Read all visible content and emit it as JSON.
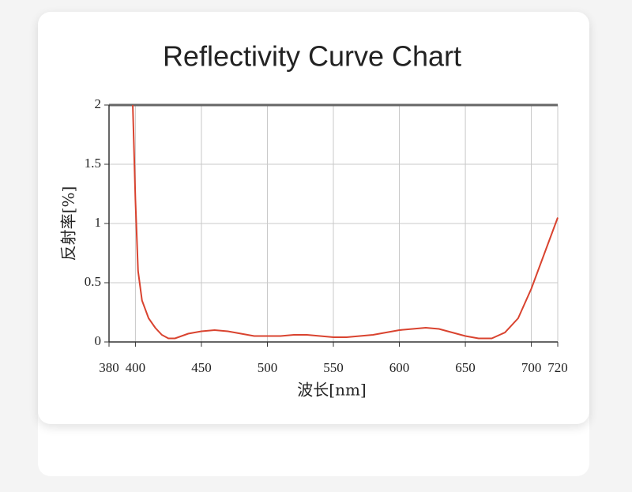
{
  "chart_data": {
    "type": "line",
    "title": "Reflectivity Curve Chart",
    "x_label": "波长[nm]",
    "y_label": "反射率[%]",
    "x": [
      398,
      400,
      402,
      405,
      410,
      415,
      420,
      425,
      430,
      440,
      450,
      460,
      470,
      480,
      490,
      500,
      510,
      520,
      530,
      540,
      550,
      560,
      570,
      580,
      590,
      600,
      610,
      620,
      630,
      640,
      650,
      660,
      670,
      680,
      690,
      700,
      710,
      720
    ],
    "series": [
      {
        "color": "#d9432f",
        "values": [
          2.0,
          1.2,
          0.6,
          0.35,
          0.2,
          0.12,
          0.06,
          0.03,
          0.03,
          0.07,
          0.09,
          0.1,
          0.09,
          0.07,
          0.05,
          0.05,
          0.05,
          0.06,
          0.06,
          0.05,
          0.04,
          0.04,
          0.05,
          0.06,
          0.08,
          0.1,
          0.11,
          0.12,
          0.11,
          0.08,
          0.05,
          0.03,
          0.03,
          0.08,
          0.2,
          0.45,
          0.75,
          1.05
        ]
      }
    ],
    "xlim": [
      380,
      720
    ],
    "xticks": [
      380,
      400,
      450,
      500,
      550,
      600,
      650,
      700,
      720
    ],
    "ylim": [
      0,
      2
    ],
    "yticks": [
      0,
      0.5,
      1,
      1.5,
      2
    ],
    "grid": true
  }
}
